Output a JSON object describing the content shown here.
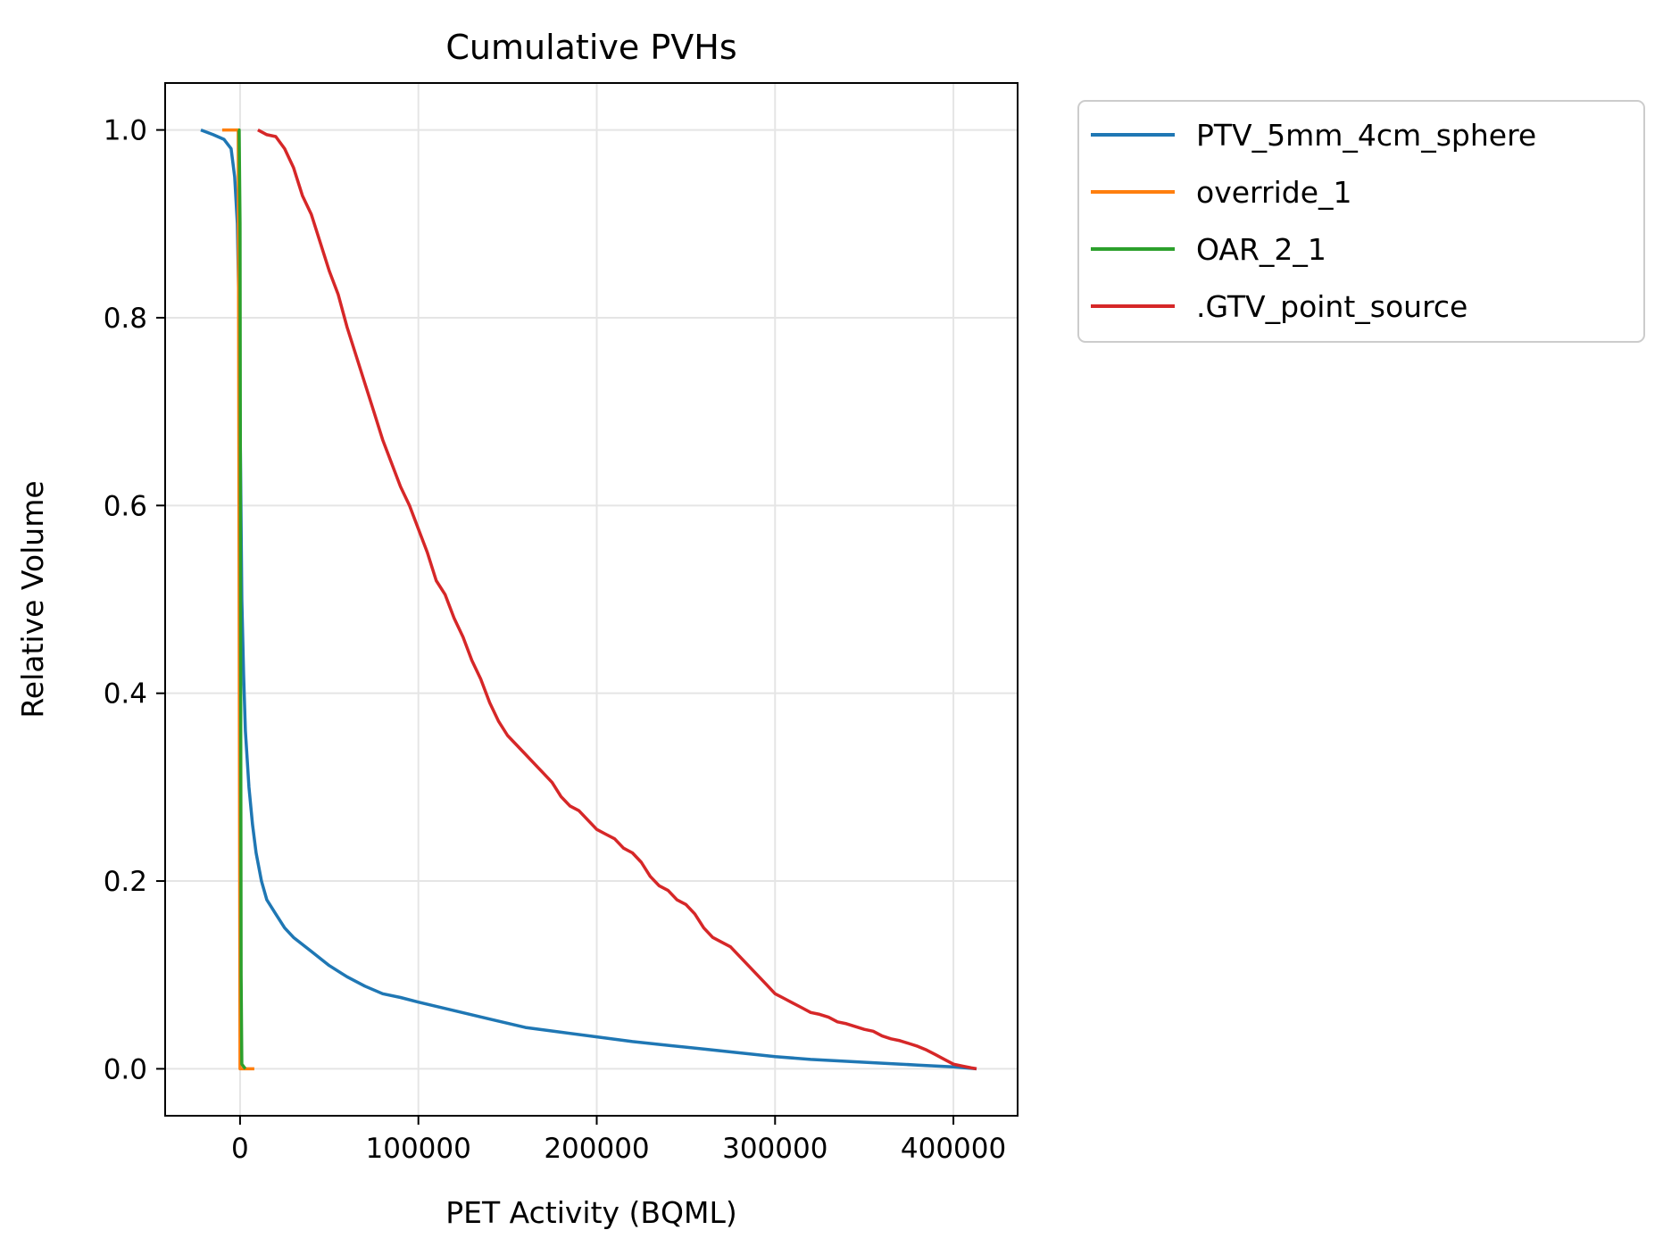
{
  "chart_data": {
    "type": "line",
    "title": "Cumulative PVHs",
    "xlabel": "PET Activity (BQML)",
    "ylabel": "Relative Volume",
    "xlim": [
      -42000,
      436000
    ],
    "ylim": [
      -0.05,
      1.05
    ],
    "xticks": [
      0,
      100000,
      200000,
      300000,
      400000
    ],
    "yticks": [
      0.0,
      0.2,
      0.4,
      0.6,
      0.8,
      1.0
    ],
    "xtick_labels": [
      "0",
      "100000",
      "200000",
      "300000",
      "400000"
    ],
    "ytick_labels": [
      "0.0",
      "0.2",
      "0.4",
      "0.6",
      "0.8",
      "1.0"
    ],
    "grid": true,
    "legend_position": "outside-upper-right",
    "series": [
      {
        "name": "PTV_5mm_4cm_sphere",
        "color": "#1f77b4",
        "x": [
          -22000,
          -15000,
          -9000,
          -5000,
          -3000,
          -1500,
          -500,
          0,
          500,
          1000,
          2000,
          3000,
          5000,
          7000,
          9000,
          12000,
          15000,
          20000,
          25000,
          30000,
          40000,
          50000,
          60000,
          70000,
          80000,
          90000,
          100000,
          120000,
          140000,
          160000,
          180000,
          200000,
          220000,
          240000,
          260000,
          280000,
          300000,
          320000,
          340000,
          360000,
          380000,
          400000,
          413000
        ],
        "y": [
          1.0,
          0.995,
          0.99,
          0.98,
          0.95,
          0.9,
          0.8,
          0.7,
          0.6,
          0.5,
          0.42,
          0.36,
          0.3,
          0.26,
          0.23,
          0.2,
          0.18,
          0.165,
          0.15,
          0.14,
          0.125,
          0.11,
          0.098,
          0.088,
          0.08,
          0.076,
          0.071,
          0.062,
          0.053,
          0.044,
          0.039,
          0.034,
          0.029,
          0.025,
          0.021,
          0.017,
          0.013,
          0.01,
          0.008,
          0.006,
          0.004,
          0.002,
          0.0
        ]
      },
      {
        "name": "override_1",
        "color": "#ff7f0e",
        "x": [
          -10000,
          -3000,
          -1000,
          0,
          1000,
          8000
        ],
        "y": [
          1.0,
          1.0,
          1.0,
          0.0,
          0.0,
          0.0
        ]
      },
      {
        "name": "OAR_2_1",
        "color": "#2ca02c",
        "x": [
          -1000,
          -500,
          0,
          300,
          600,
          1000,
          3000
        ],
        "y": [
          1.0,
          1.0,
          0.9,
          0.5,
          0.1,
          0.005,
          0.0
        ]
      },
      {
        "name": ".GTV_point_source",
        "color": "#d62728",
        "x": [
          10000,
          15000,
          20000,
          25000,
          30000,
          35000,
          40000,
          45000,
          50000,
          55000,
          60000,
          65000,
          70000,
          75000,
          80000,
          85000,
          90000,
          95000,
          100000,
          105000,
          110000,
          115000,
          120000,
          125000,
          130000,
          135000,
          140000,
          145000,
          150000,
          155000,
          160000,
          165000,
          170000,
          175000,
          180000,
          185000,
          190000,
          195000,
          200000,
          205000,
          210000,
          215000,
          220000,
          225000,
          230000,
          235000,
          240000,
          245000,
          250000,
          255000,
          260000,
          265000,
          270000,
          275000,
          280000,
          285000,
          290000,
          295000,
          300000,
          305000,
          310000,
          315000,
          320000,
          325000,
          330000,
          335000,
          340000,
          345000,
          350000,
          355000,
          360000,
          365000,
          370000,
          375000,
          380000,
          385000,
          390000,
          395000,
          400000,
          405000,
          410000,
          413000
        ],
        "y": [
          1.0,
          0.995,
          0.993,
          0.98,
          0.96,
          0.93,
          0.91,
          0.88,
          0.85,
          0.825,
          0.79,
          0.76,
          0.73,
          0.7,
          0.67,
          0.645,
          0.62,
          0.6,
          0.575,
          0.55,
          0.52,
          0.505,
          0.48,
          0.46,
          0.435,
          0.415,
          0.39,
          0.37,
          0.355,
          0.345,
          0.335,
          0.325,
          0.315,
          0.305,
          0.29,
          0.28,
          0.275,
          0.265,
          0.255,
          0.25,
          0.245,
          0.235,
          0.23,
          0.22,
          0.205,
          0.195,
          0.19,
          0.18,
          0.175,
          0.165,
          0.15,
          0.14,
          0.135,
          0.13,
          0.12,
          0.11,
          0.1,
          0.09,
          0.08,
          0.075,
          0.07,
          0.065,
          0.06,
          0.058,
          0.055,
          0.05,
          0.048,
          0.045,
          0.042,
          0.04,
          0.035,
          0.032,
          0.03,
          0.027,
          0.024,
          0.02,
          0.015,
          0.01,
          0.005,
          0.003,
          0.001,
          0.0
        ]
      }
    ]
  }
}
